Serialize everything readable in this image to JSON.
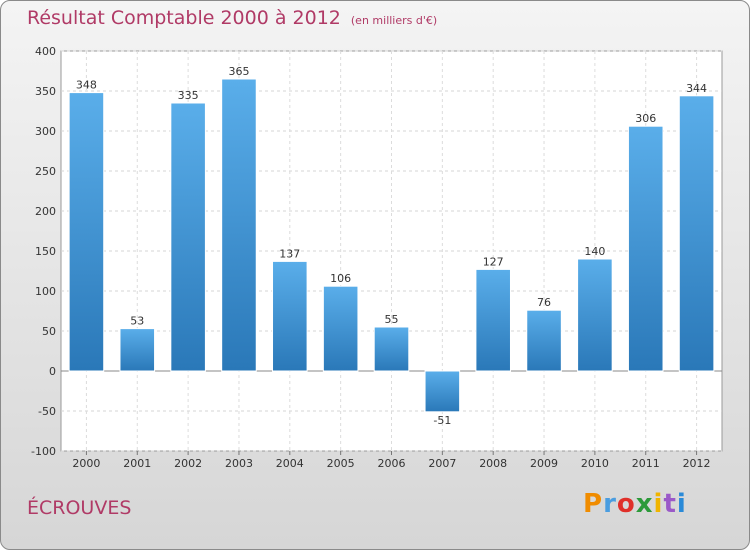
{
  "header": {
    "title": "Résultat Comptable 2000 à 2012",
    "subtitle": "(en milliers d'€)"
  },
  "footer": {
    "location": "ÉCROUVES",
    "brand": "Proxiti",
    "brand_colors": [
      "#f08c00",
      "#4a9de0",
      "#e0302a",
      "#2c9a3a",
      "#f0b400",
      "#9a59c8",
      "#2a8ad8"
    ]
  },
  "chart_data": {
    "type": "bar",
    "title": "Résultat Comptable 2000 à 2012",
    "subtitle": "(en milliers d'€)",
    "categories": [
      "2000",
      "2001",
      "2002",
      "2003",
      "2004",
      "2005",
      "2006",
      "2007",
      "2008",
      "2009",
      "2010",
      "2011",
      "2012"
    ],
    "values": [
      348,
      53,
      335,
      365,
      137,
      106,
      55,
      -51,
      127,
      76,
      140,
      306,
      344
    ],
    "ylim": [
      -100,
      400
    ],
    "yticks": [
      -100,
      -50,
      0,
      50,
      100,
      150,
      200,
      250,
      300,
      350,
      400
    ],
    "grid": true,
    "bar_color": "#3a8fd0",
    "legend": "none"
  }
}
